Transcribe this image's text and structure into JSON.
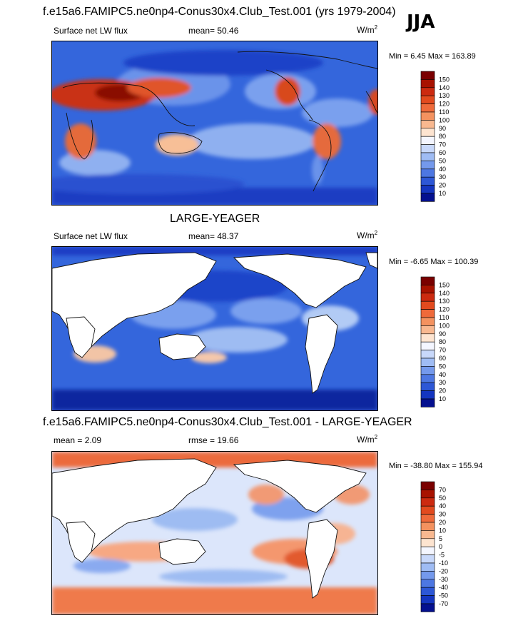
{
  "season": "JJA",
  "panels": [
    {
      "id": "panel1",
      "title": "f.e15a6.FAMIPC5.ne0np4-Conus30x4.Club_Test.001 (yrs 1979-2004)",
      "left_label": "Surface net LW flux",
      "center_label": "mean=  50.46",
      "units": "W/m",
      "units_exp": "2",
      "minmax": "Min =   6.45 Max = 163.89",
      "colorbar": {
        "levels": [
          "150",
          "140",
          "130",
          "120",
          "110",
          "100",
          "90",
          "80",
          "70",
          "60",
          "50",
          "40",
          "30",
          "20",
          "10"
        ],
        "colors": [
          "#7a0000",
          "#a81200",
          "#cc2a10",
          "#e24a1e",
          "#ef6a3a",
          "#f4925f",
          "#f8b890",
          "#fde4d0",
          "#f4f6ff",
          "#c8d8fa",
          "#9fbcf4",
          "#7499ec",
          "#4d77e2",
          "#2d57d6",
          "#1435c0",
          "#04108f"
        ]
      }
    },
    {
      "id": "panel2",
      "title": "LARGE-YEAGER",
      "left_label": "Surface net LW flux",
      "center_label": "mean=  48.37",
      "units": "W/m",
      "units_exp": "2",
      "minmax": "Min =  -6.65 Max = 100.39",
      "colorbar": {
        "levels": [
          "150",
          "140",
          "130",
          "120",
          "110",
          "100",
          "90",
          "80",
          "70",
          "60",
          "50",
          "40",
          "30",
          "20",
          "10"
        ],
        "colors": [
          "#7a0000",
          "#a81200",
          "#cc2a10",
          "#e24a1e",
          "#ef6a3a",
          "#f4925f",
          "#f8b890",
          "#fde4d0",
          "#f4f6ff",
          "#c8d8fa",
          "#9fbcf4",
          "#7499ec",
          "#4d77e2",
          "#2d57d6",
          "#1435c0",
          "#04108f"
        ]
      }
    },
    {
      "id": "panel3",
      "title": "f.e15a6.FAMIPC5.ne0np4-Conus30x4.Club_Test.001 - LARGE-YEAGER",
      "left_label": "mean =   2.09",
      "center_label": "rmse =  19.66",
      "units": "W/m",
      "units_exp": "2",
      "minmax": "Min = -38.80 Max = 155.94",
      "colorbar": {
        "levels": [
          "70",
          "50",
          "40",
          "30",
          "20",
          "10",
          "5",
          "0",
          "-5",
          "-10",
          "-20",
          "-30",
          "-40",
          "-50",
          "-70"
        ],
        "colors": [
          "#7a0000",
          "#a81200",
          "#cc2a10",
          "#e24a1e",
          "#ef6a3a",
          "#f4925f",
          "#f8b890",
          "#fde4d0",
          "#f4f6ff",
          "#c8d8fa",
          "#9fbcf4",
          "#7499ec",
          "#4d77e2",
          "#2d57d6",
          "#1435c0",
          "#04108f"
        ]
      }
    }
  ]
}
